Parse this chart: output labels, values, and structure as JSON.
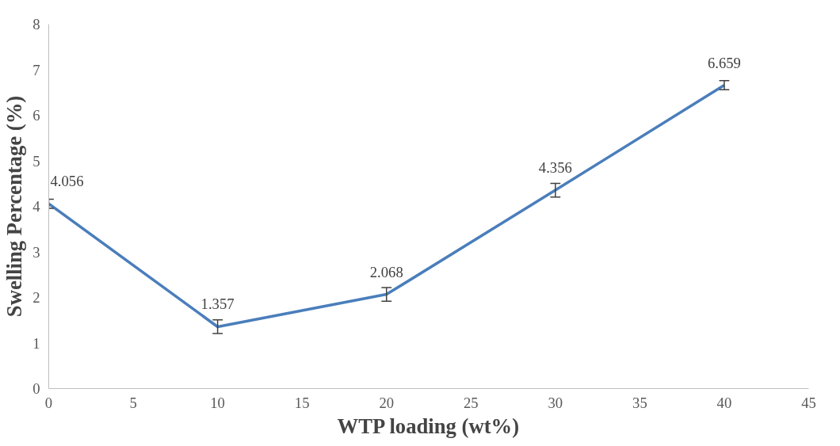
{
  "chart_data": {
    "type": "line",
    "xlabel": "WTP loading (wt%)",
    "ylabel": "Swelling Percentage (%)",
    "x": [
      0,
      10,
      20,
      30,
      40
    ],
    "series": [
      {
        "color": "#4a7ebb",
        "values": [
          4.056,
          1.357,
          2.068,
          4.356,
          6.659
        ],
        "errors": [
          0.1,
          0.15,
          0.15,
          0.15,
          0.1
        ]
      }
    ],
    "data_labels": true,
    "marker": "none",
    "line_style": "solid",
    "grid": false,
    "xlim": [
      0,
      45
    ],
    "xticks": [
      0,
      5,
      10,
      15,
      20,
      25,
      30,
      35,
      40,
      45
    ],
    "ylim": [
      0,
      8
    ],
    "yticks": [
      0,
      1,
      2,
      3,
      4,
      5,
      6,
      7,
      8
    ]
  }
}
